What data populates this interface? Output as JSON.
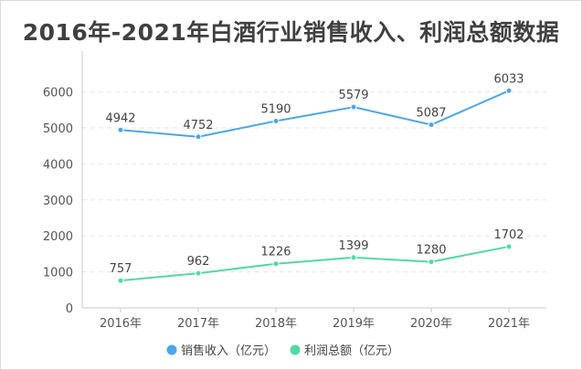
{
  "chart_data": {
    "type": "line",
    "title": "2016年-2021年白酒行业销售收入、利润总额数据",
    "categories": [
      "2016年",
      "2017年",
      "2018年",
      "2019年",
      "2020年",
      "2021年"
    ],
    "series": [
      {
        "name": "销售收入（亿元）",
        "values": [
          4942,
          4752,
          5190,
          5579,
          5087,
          6033
        ],
        "color": "#4da6e8"
      },
      {
        "name": "利润总额（亿元）",
        "values": [
          757,
          962,
          1226,
          1399,
          1280,
          1702
        ],
        "color": "#52d9a4"
      }
    ],
    "y_ticks": [
      0,
      1000,
      2000,
      3000,
      4000,
      5000,
      6000
    ],
    "ylim": [
      0,
      6000
    ],
    "xlabel": "",
    "ylabel": "",
    "grid": true,
    "legend": "bottom-center"
  }
}
